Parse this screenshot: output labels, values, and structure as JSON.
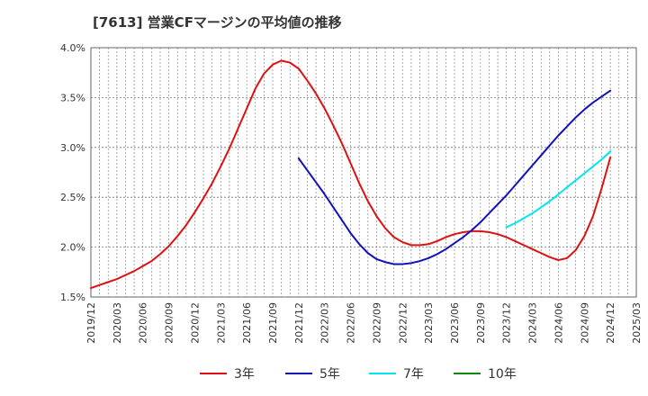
{
  "chart_data": {
    "type": "line",
    "title": "[7613]  営業CFマージンの平均値の推移",
    "xlabel": "",
    "ylabel": "",
    "ylim": [
      0.015,
      0.04
    ],
    "y_ticks": [
      0.015,
      0.02,
      0.025,
      0.03,
      0.035,
      0.04
    ],
    "y_tick_labels": [
      "1.5%",
      "2.0%",
      "2.5%",
      "3.0%",
      "3.5%",
      "4.0%"
    ],
    "x_tick_labels": [
      "2019/12",
      "2020/03",
      "2020/06",
      "2020/09",
      "2020/12",
      "2021/03",
      "2021/06",
      "2021/09",
      "2021/12",
      "2022/03",
      "2022/06",
      "2022/09",
      "2022/12",
      "2023/03",
      "2023/06",
      "2023/09",
      "2023/12",
      "2024/03",
      "2024/06",
      "2024/09",
      "2024/12",
      "2025/03"
    ],
    "grid": true,
    "legend_position": "bottom",
    "series": [
      {
        "name": "3年",
        "color": "#dd1111",
        "points": [
          [
            "2019/12",
            0.0159
          ],
          [
            "2020/01",
            0.0162
          ],
          [
            "2020/02",
            0.0165
          ],
          [
            "2020/03",
            0.0168
          ],
          [
            "2020/04",
            0.0172
          ],
          [
            "2020/05",
            0.0176
          ],
          [
            "2020/06",
            0.0181
          ],
          [
            "2020/07",
            0.0186
          ],
          [
            "2020/08",
            0.0193
          ],
          [
            "2020/09",
            0.0201
          ],
          [
            "2020/10",
            0.0211
          ],
          [
            "2020/11",
            0.0222
          ],
          [
            "2020/12",
            0.0235
          ],
          [
            "2021/01",
            0.0249
          ],
          [
            "2021/02",
            0.0264
          ],
          [
            "2021/03",
            0.0281
          ],
          [
            "2021/04",
            0.0299
          ],
          [
            "2021/05",
            0.0319
          ],
          [
            "2021/06",
            0.0339
          ],
          [
            "2021/07",
            0.0359
          ],
          [
            "2021/08",
            0.0374
          ],
          [
            "2021/09",
            0.0383
          ],
          [
            "2021/10",
            0.0387
          ],
          [
            "2021/11",
            0.0385
          ],
          [
            "2021/12",
            0.0379
          ],
          [
            "2022/01",
            0.0367
          ],
          [
            "2022/02",
            0.0354
          ],
          [
            "2022/03",
            0.0339
          ],
          [
            "2022/04",
            0.0322
          ],
          [
            "2022/05",
            0.0304
          ],
          [
            "2022/06",
            0.0284
          ],
          [
            "2022/07",
            0.0264
          ],
          [
            "2022/08",
            0.0246
          ],
          [
            "2022/09",
            0.0231
          ],
          [
            "2022/10",
            0.0219
          ],
          [
            "2022/11",
            0.021
          ],
          [
            "2022/12",
            0.0205
          ],
          [
            "2023/01",
            0.0202
          ],
          [
            "2023/02",
            0.0202
          ],
          [
            "2023/03",
            0.0203
          ],
          [
            "2023/04",
            0.0206
          ],
          [
            "2023/05",
            0.021
          ],
          [
            "2023/06",
            0.0213
          ],
          [
            "2023/07",
            0.0215
          ],
          [
            "2023/08",
            0.0216
          ],
          [
            "2023/09",
            0.0216
          ],
          [
            "2023/10",
            0.0215
          ],
          [
            "2023/11",
            0.0213
          ],
          [
            "2023/12",
            0.021
          ],
          [
            "2024/01",
            0.0206
          ],
          [
            "2024/02",
            0.0202
          ],
          [
            "2024/03",
            0.0198
          ],
          [
            "2024/04",
            0.0194
          ],
          [
            "2024/05",
            0.019
          ],
          [
            "2024/06",
            0.0187
          ],
          [
            "2024/07",
            0.0189
          ],
          [
            "2024/08",
            0.0197
          ],
          [
            "2024/09",
            0.0211
          ],
          [
            "2024/10",
            0.0231
          ],
          [
            "2024/11",
            0.0259
          ],
          [
            "2024/12",
            0.029
          ]
        ]
      },
      {
        "name": "5年",
        "color": "#1111bb",
        "points": [
          [
            "2021/12",
            0.0289
          ],
          [
            "2022/01",
            0.0277
          ],
          [
            "2022/02",
            0.0265
          ],
          [
            "2022/03",
            0.0253
          ],
          [
            "2022/04",
            0.024
          ],
          [
            "2022/05",
            0.0227
          ],
          [
            "2022/06",
            0.0214
          ],
          [
            "2022/07",
            0.0203
          ],
          [
            "2022/08",
            0.0194
          ],
          [
            "2022/09",
            0.0188
          ],
          [
            "2022/10",
            0.0185
          ],
          [
            "2022/11",
            0.0183
          ],
          [
            "2022/12",
            0.0183
          ],
          [
            "2023/01",
            0.0184
          ],
          [
            "2023/02",
            0.0186
          ],
          [
            "2023/03",
            0.0189
          ],
          [
            "2023/04",
            0.0193
          ],
          [
            "2023/05",
            0.0198
          ],
          [
            "2023/06",
            0.0204
          ],
          [
            "2023/07",
            0.021
          ],
          [
            "2023/08",
            0.0217
          ],
          [
            "2023/09",
            0.0225
          ],
          [
            "2023/10",
            0.0234
          ],
          [
            "2023/11",
            0.0243
          ],
          [
            "2023/12",
            0.0252
          ],
          [
            "2024/01",
            0.0262
          ],
          [
            "2024/02",
            0.0272
          ],
          [
            "2024/03",
            0.0282
          ],
          [
            "2024/04",
            0.0292
          ],
          [
            "2024/05",
            0.0302
          ],
          [
            "2024/06",
            0.0312
          ],
          [
            "2024/07",
            0.0321
          ],
          [
            "2024/08",
            0.033
          ],
          [
            "2024/09",
            0.0338
          ],
          [
            "2024/10",
            0.0345
          ],
          [
            "2024/11",
            0.0351
          ],
          [
            "2024/12",
            0.0357
          ]
        ]
      },
      {
        "name": "7年",
        "color": "#00e5ee",
        "points": [
          [
            "2023/12",
            0.022
          ],
          [
            "2024/01",
            0.0224
          ],
          [
            "2024/02",
            0.0229
          ],
          [
            "2024/03",
            0.0234
          ],
          [
            "2024/04",
            0.024
          ],
          [
            "2024/05",
            0.0246
          ],
          [
            "2024/06",
            0.0253
          ],
          [
            "2024/07",
            0.026
          ],
          [
            "2024/08",
            0.0267
          ],
          [
            "2024/09",
            0.0274
          ],
          [
            "2024/10",
            0.0281
          ],
          [
            "2024/11",
            0.0288
          ],
          [
            "2024/12",
            0.0296
          ]
        ]
      },
      {
        "name": "10年",
        "color": "#118811",
        "points": []
      }
    ]
  }
}
